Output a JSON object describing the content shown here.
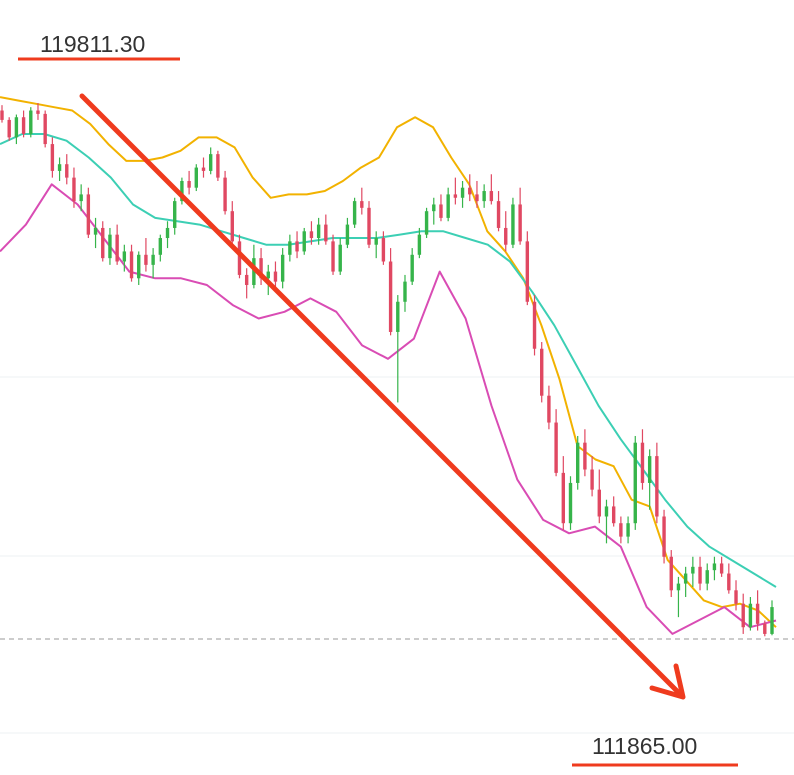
{
  "chart_data": {
    "type": "candlestick",
    "title": "",
    "xlabel": "",
    "ylabel": "",
    "ylim": [
      110200,
      120900
    ],
    "annotations": {
      "high_label": "119811.30",
      "low_label": "111865.00"
    },
    "series": [
      {
        "name": "",
        "type": "candles",
        "ohlc": [
          [
            119700,
            119780,
            119520,
            119560
          ],
          [
            119560,
            119600,
            119250,
            119300
          ],
          [
            119300,
            119640,
            119200,
            119600
          ],
          [
            119600,
            119700,
            119300,
            119350
          ],
          [
            119350,
            119750,
            119300,
            119700
          ],
          [
            119700,
            119811,
            119560,
            119650
          ],
          [
            119650,
            119700,
            119150,
            119200
          ],
          [
            119200,
            119300,
            118700,
            118800
          ],
          [
            118800,
            119000,
            118650,
            118900
          ],
          [
            118900,
            119050,
            118600,
            118700
          ],
          [
            118700,
            118850,
            118250,
            118350
          ],
          [
            118350,
            118600,
            118200,
            118450
          ],
          [
            118450,
            118550,
            117800,
            117850
          ],
          [
            117850,
            118100,
            117650,
            117950
          ],
          [
            117950,
            118050,
            117450,
            117500
          ],
          [
            117500,
            117950,
            117400,
            117850
          ],
          [
            117850,
            118000,
            117400,
            117450
          ],
          [
            117450,
            117700,
            117300,
            117600
          ],
          [
            117600,
            117700,
            117150,
            117200
          ],
          [
            117200,
            117600,
            117100,
            117550
          ],
          [
            117550,
            117800,
            117300,
            117400
          ],
          [
            117400,
            117650,
            117200,
            117550
          ],
          [
            117550,
            117850,
            117450,
            117800
          ],
          [
            117800,
            118050,
            117650,
            117950
          ],
          [
            117950,
            118400,
            117850,
            118350
          ],
          [
            118350,
            118700,
            118300,
            118650
          ],
          [
            118650,
            118800,
            118450,
            118550
          ],
          [
            118550,
            118900,
            118500,
            118850
          ],
          [
            118850,
            119000,
            118700,
            118800
          ],
          [
            118800,
            119150,
            118750,
            119050
          ],
          [
            119050,
            119100,
            118650,
            118700
          ],
          [
            118700,
            118800,
            118150,
            118200
          ],
          [
            118200,
            118350,
            117700,
            117750
          ],
          [
            117750,
            117850,
            117200,
            117250
          ],
          [
            117250,
            117350,
            116900,
            117100
          ],
          [
            117100,
            117700,
            117050,
            117500
          ],
          [
            117500,
            117650,
            117100,
            117200
          ],
          [
            117200,
            117400,
            116950,
            117300
          ],
          [
            117300,
            117450,
            117000,
            117150
          ],
          [
            117150,
            117650,
            117050,
            117550
          ],
          [
            117550,
            117850,
            117450,
            117750
          ],
          [
            117750,
            117900,
            117500,
            117600
          ],
          [
            117600,
            117950,
            117550,
            117900
          ],
          [
            117900,
            118050,
            117700,
            117800
          ],
          [
            117800,
            118100,
            117700,
            118000
          ],
          [
            118000,
            118150,
            117700,
            117750
          ],
          [
            117750,
            117850,
            117250,
            117300
          ],
          [
            117300,
            117800,
            117250,
            117700
          ],
          [
            117700,
            118100,
            117650,
            118000
          ],
          [
            118000,
            118400,
            117950,
            118350
          ],
          [
            118350,
            118550,
            118150,
            118250
          ],
          [
            118250,
            118350,
            117650,
            117700
          ],
          [
            117700,
            117900,
            117500,
            117800
          ],
          [
            117800,
            117900,
            117400,
            117450
          ],
          [
            117450,
            117650,
            116350,
            116400
          ],
          [
            116400,
            116950,
            115350,
            116850
          ],
          [
            116850,
            117250,
            116700,
            117150
          ],
          [
            117150,
            117650,
            117100,
            117550
          ],
          [
            117550,
            117950,
            117500,
            117850
          ],
          [
            117850,
            118250,
            117800,
            118200
          ],
          [
            118200,
            118400,
            118000,
            118300
          ],
          [
            118300,
            118450,
            118050,
            118100
          ],
          [
            118100,
            118550,
            118050,
            118450
          ],
          [
            118450,
            118700,
            118300,
            118400
          ],
          [
            118400,
            118650,
            118250,
            118550
          ],
          [
            118550,
            118750,
            118350,
            118450
          ],
          [
            118450,
            118650,
            118250,
            118350
          ],
          [
            118350,
            118600,
            118250,
            118500
          ],
          [
            118500,
            118750,
            118300,
            118350
          ],
          [
            118350,
            118500,
            117900,
            117950
          ],
          [
            117950,
            118200,
            117600,
            117700
          ],
          [
            117700,
            118400,
            117650,
            118300
          ],
          [
            118300,
            118550,
            117700,
            117750
          ],
          [
            117750,
            117900,
            116800,
            116850
          ],
          [
            116850,
            116950,
            116050,
            116150
          ],
          [
            116150,
            116250,
            115350,
            115450
          ],
          [
            115450,
            115600,
            114950,
            115050
          ],
          [
            115050,
            115250,
            114250,
            114300
          ],
          [
            114300,
            114550,
            113450,
            113550
          ],
          [
            113550,
            114250,
            113450,
            114150
          ],
          [
            114150,
            114850,
            114050,
            114750
          ],
          [
            114750,
            114950,
            114250,
            114350
          ],
          [
            114350,
            114550,
            113950,
            114050
          ],
          [
            114050,
            114350,
            113550,
            113650
          ],
          [
            113650,
            113900,
            113250,
            113800
          ],
          [
            113800,
            113950,
            113500,
            113550
          ],
          [
            113550,
            113650,
            113250,
            113350
          ],
          [
            113350,
            113650,
            113250,
            113550
          ],
          [
            113550,
            114850,
            113450,
            114750
          ],
          [
            114750,
            114950,
            114050,
            114150
          ],
          [
            114150,
            114650,
            113750,
            114550
          ],
          [
            114550,
            114750,
            113550,
            113650
          ],
          [
            113650,
            113750,
            112950,
            113050
          ],
          [
            113050,
            113150,
            112450,
            112550
          ],
          [
            112550,
            112750,
            112150,
            112650
          ],
          [
            112650,
            112900,
            112450,
            112800
          ],
          [
            112800,
            113050,
            112600,
            112900
          ],
          [
            112900,
            113050,
            112550,
            112650
          ],
          [
            112650,
            112950,
            112550,
            112850
          ],
          [
            112850,
            113050,
            112700,
            112950
          ],
          [
            112950,
            113050,
            112750,
            112800
          ],
          [
            112800,
            112950,
            112500,
            112550
          ],
          [
            112550,
            112700,
            112250,
            112350
          ],
          [
            112350,
            112500,
            111900,
            112000
          ],
          [
            112000,
            112450,
            111950,
            112350
          ],
          [
            112350,
            112550,
            111950,
            112050
          ],
          [
            112050,
            112100,
            111865,
            111900
          ],
          [
            111900,
            112400,
            111880,
            112300
          ]
        ]
      },
      {
        "name": "",
        "type": "line",
        "color": "#f2b200",
        "values": [
          119900,
          119850,
          119800,
          119750,
          119700,
          119500,
          119200,
          118950,
          118950,
          119000,
          119100,
          119300,
          119300,
          119150,
          118700,
          118400,
          118450,
          118450,
          118500,
          118650,
          118850,
          119000,
          119450,
          119600,
          119450,
          119000,
          118600,
          117900,
          117600,
          117200,
          116500,
          115700,
          114700,
          114500,
          114400,
          113900,
          113800,
          113000,
          112700,
          112400,
          112300,
          112350,
          112250,
          112000
        ]
      },
      {
        "name": "",
        "type": "line",
        "color": "#3ccfb4",
        "values": [
          119200,
          119350,
          119350,
          119250,
          119000,
          118700,
          118300,
          118100,
          118050,
          118000,
          117900,
          117800,
          117700,
          117700,
          117750,
          117800,
          117800,
          117800,
          117850,
          117900,
          117900,
          117800,
          117700,
          117450,
          117000,
          116500,
          115900,
          115300,
          114800,
          114350,
          113900,
          113500,
          113200,
          113000,
          112800,
          112600
        ]
      },
      {
        "name": "",
        "type": "line",
        "color": "#d94cb4",
        "values": [
          117600,
          118000,
          118600,
          118300,
          117800,
          117300,
          117200,
          117200,
          117100,
          116800,
          116600,
          116700,
          116900,
          116700,
          116200,
          116000,
          116300,
          117300,
          116600,
          115300,
          114200,
          113600,
          113400,
          113500,
          113200,
          112300,
          111900,
          112100,
          112300,
          112000,
          112100
        ]
      }
    ]
  }
}
